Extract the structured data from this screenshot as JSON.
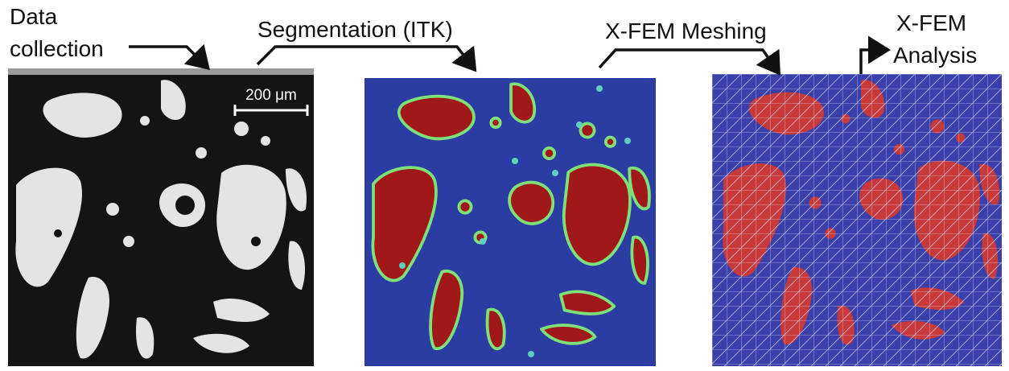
{
  "stages": [
    {
      "lines": [
        "Data",
        "collection"
      ]
    },
    {
      "lines": [
        "Segmentation (ITK)"
      ]
    },
    {
      "lines": [
        "X-FEM Meshing"
      ]
    },
    {
      "lines": [
        "X-FEM",
        "Analysis"
      ]
    }
  ],
  "scale_bar": "200 μm"
}
